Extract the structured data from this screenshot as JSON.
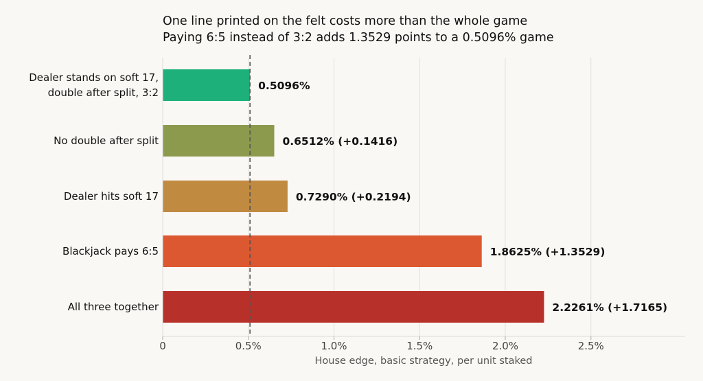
{
  "chart_data": {
    "type": "bar",
    "orientation": "horizontal",
    "title": "One line printed on the felt costs more than the whole game",
    "subtitle": "Paying 6:5 instead of 3:2 adds 1.3529 points to a 0.5096% game",
    "xlabel": "House edge, basic strategy, per unit staked",
    "xlim": [
      0,
      3.05
    ],
    "xticks": [
      0,
      0.5,
      1.0,
      1.5,
      2.0,
      2.5
    ],
    "xtick_labels": [
      "0",
      "0.5%",
      "1.0%",
      "1.5%",
      "2.0%",
      "2.5%"
    ],
    "grid": "vertical",
    "baseline_reference": 0.5096,
    "categories": [
      [
        "Dealer stands on soft 17,",
        "double after split, 3:2"
      ],
      [
        "No double after split"
      ],
      [
        "Dealer hits soft 17"
      ],
      [
        "Blackjack pays 6:5"
      ],
      [
        "All three together"
      ]
    ],
    "values": [
      0.5096,
      0.6512,
      0.729,
      1.8625,
      2.2261
    ],
    "value_labels": [
      "0.5096%",
      "0.6512%   (+0.1416)",
      "0.7290%   (+0.2194)",
      "1.8625%   (+1.3529)",
      "2.2261%   (+1.7165)"
    ],
    "colors": [
      "#1db07a",
      "#8c9a4e",
      "#c08a40",
      "#dc5830",
      "#b8302a"
    ]
  }
}
